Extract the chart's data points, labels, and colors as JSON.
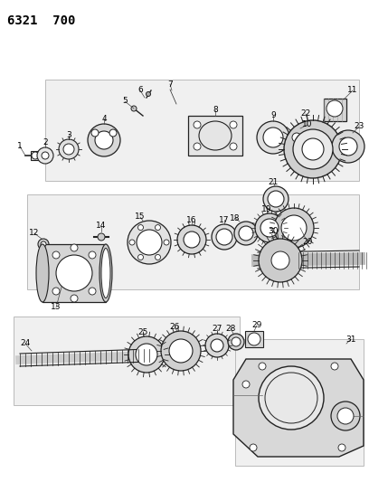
{
  "title": "6321  700",
  "bg_color": "#ffffff",
  "fig_width": 4.08,
  "fig_height": 5.33,
  "dpi": 100,
  "line_color": "#222222",
  "gray": "#666666",
  "lgray": "#999999",
  "panel_fc": "#f0f0f0",
  "panel_ec": "#bbbbbb"
}
